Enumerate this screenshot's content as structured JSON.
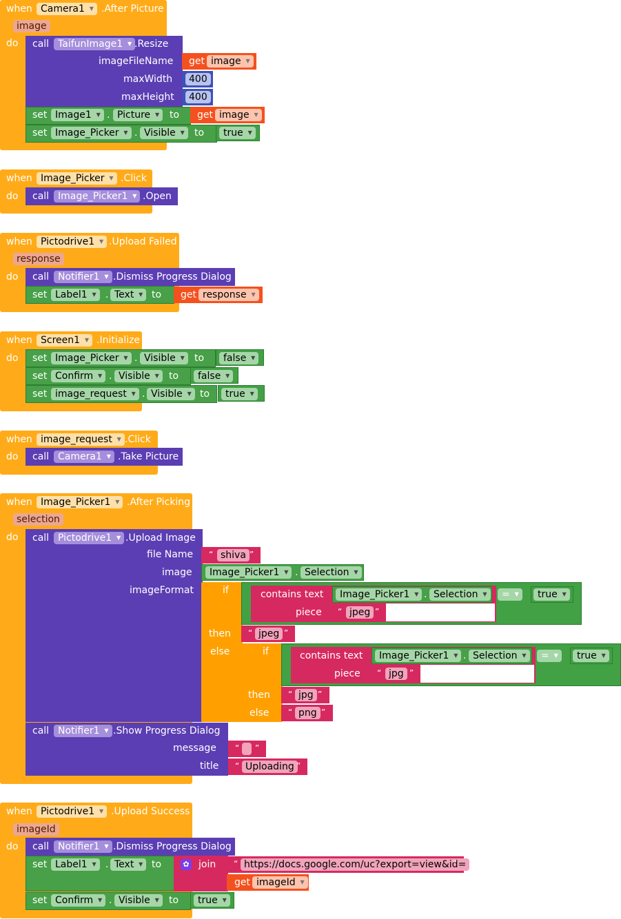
{
  "common": {
    "when": "when",
    "do": "do",
    "call": "call",
    "set": "set",
    "get": "get",
    "to": "to",
    "dot": ".",
    "if": "if",
    "then": "then",
    "else": "else",
    "contains_text": "contains text",
    "piece": "piece",
    "join": "join",
    "equals": "=",
    "open_quote": "“",
    "close_quote": "”"
  },
  "events": {
    "camera": {
      "component": "Camera1",
      "event": ".After Picture",
      "param": "image",
      "call_component": "TaifunImage1",
      "call_method": ".Resize",
      "arg1": "imageFileName",
      "arg2": "maxWidth",
      "arg3": "maxHeight",
      "get_var": "image",
      "max_width": "400",
      "max_height": "400",
      "set1_component": "Image1",
      "set1_prop": "Picture",
      "set1_get": "image",
      "set2_component": "Image_Picker",
      "set2_prop": "Visible",
      "set2_value": "true"
    },
    "picker_click": {
      "component": "Image_Picker",
      "event": ".Click",
      "call_component": "Image_Picker1",
      "call_method": ".Open"
    },
    "upload_failed": {
      "component": "Pictodrive1",
      "event": ".Upload Failed",
      "param": "response",
      "call_component": "Notifier1",
      "call_method": ".Dismiss Progress Dialog",
      "set_component": "Label1",
      "set_prop": "Text",
      "get_var": "response"
    },
    "screen_init": {
      "component": "Screen1",
      "event": ".Initialize",
      "set1_component": "Image_Picker",
      "set1_prop": "Visible",
      "set1_value": "false",
      "set2_component": "Confirm",
      "set2_prop": "Visible",
      "set2_value": "false",
      "set3_component": "image_request",
      "set3_prop": "Visible",
      "set3_value": "true"
    },
    "request_click": {
      "component": "image_request",
      "event": ".Click",
      "call_component": "Camera1",
      "call_method": ".Take Picture"
    },
    "after_picking": {
      "component": "Image_Picker1",
      "event": ".After Picking",
      "param": "selection",
      "call_component": "Pictodrive1",
      "call_method": ".Upload Image",
      "arg1": "file Name",
      "arg2": "image",
      "arg3": "imageFormat",
      "file_name": "shiva",
      "image_component": "Image_Picker1",
      "image_prop": "Selection",
      "if1_component": "Image_Picker1",
      "if1_prop": "Selection",
      "if1_bool": "true",
      "if1_piece": "jpeg",
      "then1": "jpeg",
      "if2_component": "Image_Picker1",
      "if2_prop": "Selection",
      "if2_bool": "true",
      "if2_piece": "jpg",
      "then2": "jpg",
      "else2": "png",
      "notifier_component": "Notifier1",
      "notifier_method": ".Show Progress Dialog",
      "msg_label": "message",
      "title_label": "title",
      "message_value": "",
      "title_value": "Uploading"
    },
    "upload_success": {
      "component": "Pictodrive1",
      "event": ".Upload Success",
      "param": "imageId",
      "call_component": "Notifier1",
      "call_method": ".Dismiss Progress Dialog",
      "set1_component": "Label1",
      "set1_prop": "Text",
      "join_url": "https://docs.google.com/uc?export=view&id=",
      "get_var": "imageId",
      "set2_component": "Confirm",
      "set2_prop": "Visible",
      "set2_value": "true"
    }
  },
  "colors": {
    "event": "#FFAB19",
    "procedure": "#5B3EB3",
    "component": "#48A048",
    "text": "#D6295F",
    "variable": "#F4511E",
    "math": "#3F51B5",
    "control": "#FFA000",
    "logic": "#42A045"
  }
}
